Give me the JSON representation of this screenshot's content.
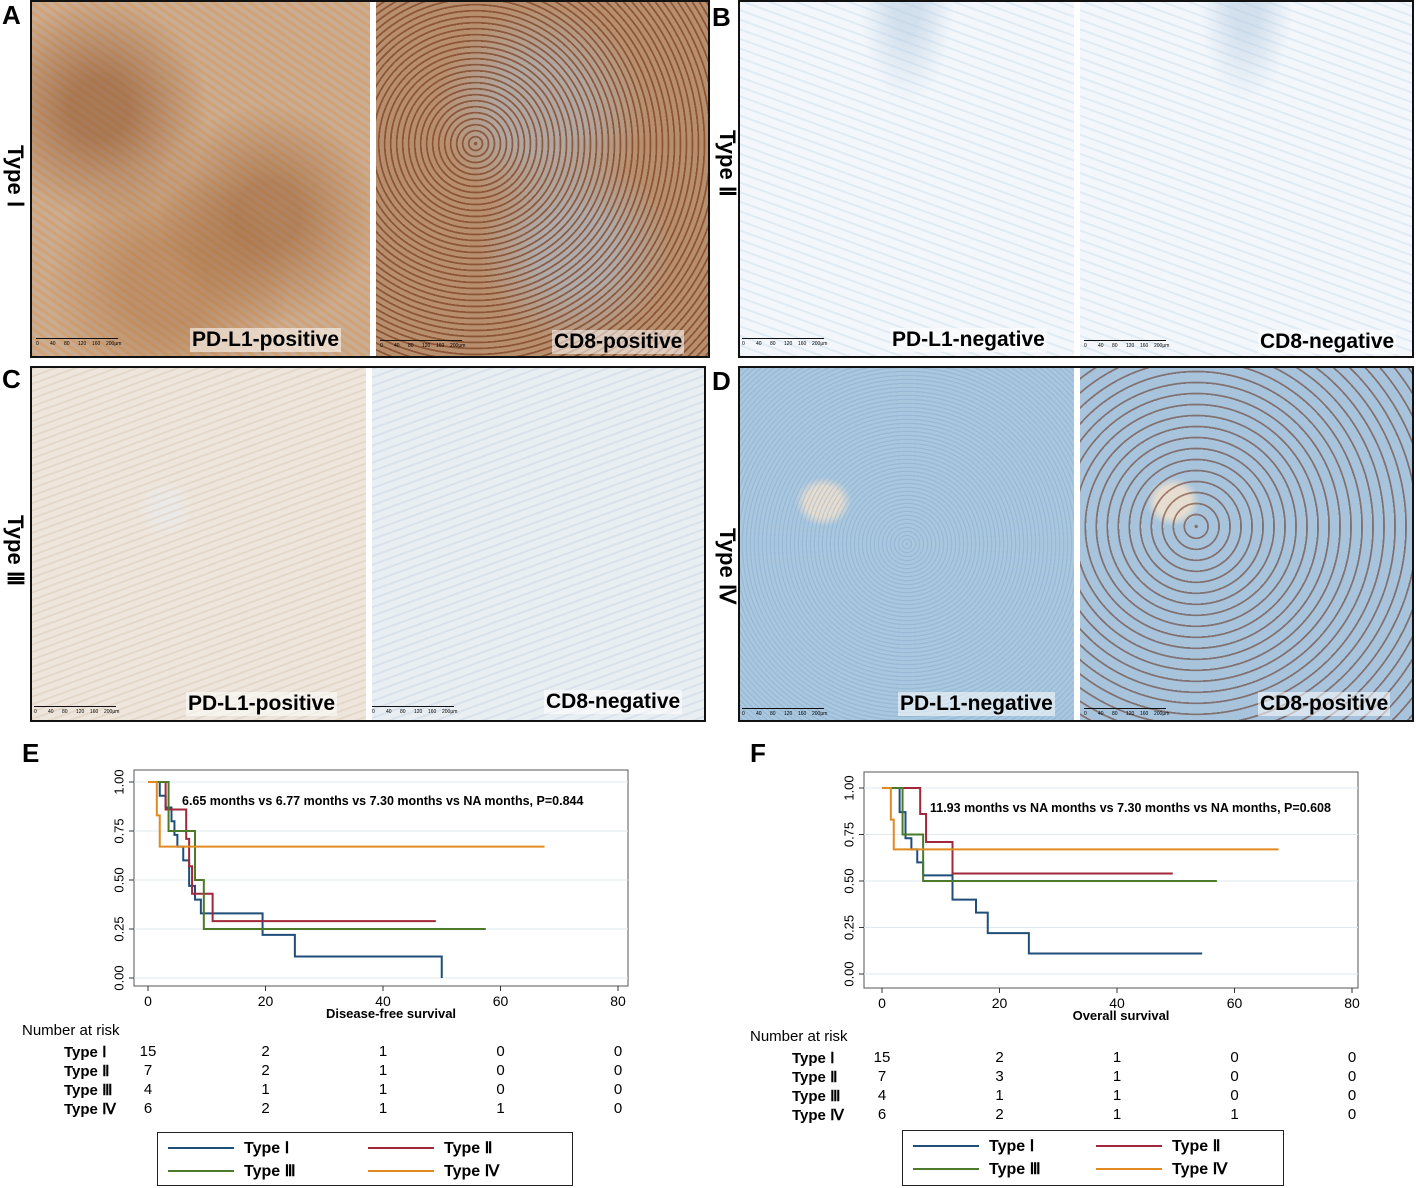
{
  "panels": {
    "A": {
      "letter": "A",
      "type_label": "Type Ⅰ",
      "left_label": "PD-L1-positive",
      "right_label": "CD8-positive"
    },
    "B": {
      "letter": "B",
      "type_label": "Type Ⅱ",
      "left_label": "PD-L1-negative",
      "right_label": "CD8-negative"
    },
    "C": {
      "letter": "C",
      "type_label": "Type Ⅲ",
      "left_label": "PD-L1-positive",
      "right_label": "CD8-negative"
    },
    "D": {
      "letter": "D",
      "type_label": "Type Ⅳ",
      "left_label": "PD-L1-negative",
      "right_label": "CD8-positive"
    },
    "E": {
      "letter": "E"
    },
    "F": {
      "letter": "F"
    }
  },
  "scalebar_ticks": [
    "0",
    "40",
    "80",
    "120",
    "160",
    "200μm"
  ],
  "colors": {
    "type1": "#1f4e79",
    "type2": "#a0283a",
    "type3": "#4a7a2a",
    "type4": "#e08a20"
  },
  "chart_data": [
    {
      "type": "line",
      "subtype": "kaplan-meier",
      "xlabel": "Disease-free survival",
      "ylabel": "",
      "xlim": [
        0,
        80
      ],
      "ylim": [
        0,
        1
      ],
      "xticks": [
        "0",
        "20",
        "40",
        "60",
        "80"
      ],
      "yticks": [
        "0.00",
        "0.25",
        "0.50",
        "0.75",
        "1.00"
      ],
      "annotation": "6.65 months vs 6.77 months vs 7.30 months vs NA months, P=0.844",
      "series": [
        {
          "name": "Type Ⅰ",
          "color": "#1f4e79",
          "steps": [
            [
              0,
              1.0
            ],
            [
              2,
              0.93
            ],
            [
              3,
              0.87
            ],
            [
              4,
              0.8
            ],
            [
              4.5,
              0.73
            ],
            [
              5,
              0.67
            ],
            [
              6,
              0.6
            ],
            [
              7,
              0.47
            ],
            [
              8,
              0.4
            ],
            [
              9,
              0.33
            ],
            [
              19.5,
              0.22
            ],
            [
              25,
              0.11
            ],
            [
              50,
              0.0
            ]
          ]
        },
        {
          "name": "Type Ⅱ",
          "color": "#a0283a",
          "steps": [
            [
              0,
              1.0
            ],
            [
              3,
              0.86
            ],
            [
              6.5,
              0.71
            ],
            [
              7,
              0.57
            ],
            [
              7.5,
              0.43
            ],
            [
              11,
              0.29
            ],
            [
              49,
              0.29
            ]
          ]
        },
        {
          "name": "Type Ⅲ",
          "color": "#4a7a2a",
          "steps": [
            [
              0,
              1.0
            ],
            [
              3.5,
              0.75
            ],
            [
              8,
              0.5
            ],
            [
              9.5,
              0.25
            ],
            [
              57.5,
              0.25
            ]
          ]
        },
        {
          "name": "Type Ⅳ",
          "color": "#e08a20",
          "steps": [
            [
              0,
              1.0
            ],
            [
              1.5,
              0.83
            ],
            [
              2,
              0.67
            ],
            [
              67.5,
              0.67
            ]
          ]
        }
      ],
      "risk_table": {
        "title": "Number at risk",
        "rows": [
          {
            "label": "Type Ⅰ",
            "values": [
              "15",
              "2",
              "1",
              "0",
              "0"
            ]
          },
          {
            "label": "Type Ⅱ",
            "values": [
              "7",
              "2",
              "1",
              "0",
              "0"
            ]
          },
          {
            "label": "Type Ⅲ",
            "values": [
              "4",
              "1",
              "1",
              "0",
              "0"
            ]
          },
          {
            "label": "Type Ⅳ",
            "values": [
              "6",
              "2",
              "1",
              "1",
              "0"
            ]
          }
        ]
      },
      "legend": [
        "Type Ⅰ",
        "Type Ⅱ",
        "Type Ⅲ",
        "Type Ⅳ"
      ]
    },
    {
      "type": "line",
      "subtype": "kaplan-meier",
      "xlabel": "Overall survival",
      "ylabel": "",
      "xlim": [
        0,
        80
      ],
      "ylim": [
        0,
        1
      ],
      "xticks": [
        "0",
        "20",
        "40",
        "60",
        "80"
      ],
      "yticks": [
        "0.00",
        "0.25",
        "0.50",
        "0.75",
        "1.00"
      ],
      "annotation": "11.93 months vs NA months vs 7.30 months vs NA months, P=0.608",
      "series": [
        {
          "name": "Type Ⅰ",
          "color": "#1f4e79",
          "steps": [
            [
              0,
              1.0
            ],
            [
              3,
              0.87
            ],
            [
              4,
              0.73
            ],
            [
              5,
              0.67
            ],
            [
              6,
              0.6
            ],
            [
              7,
              0.53
            ],
            [
              12,
              0.4
            ],
            [
              16,
              0.33
            ],
            [
              18,
              0.22
            ],
            [
              25,
              0.11
            ],
            [
              54.5,
              0.11
            ]
          ]
        },
        {
          "name": "Type Ⅱ",
          "color": "#a0283a",
          "steps": [
            [
              0,
              1.0
            ],
            [
              6.5,
              0.86
            ],
            [
              7.5,
              0.71
            ],
            [
              12,
              0.54
            ],
            [
              49.5,
              0.54
            ]
          ]
        },
        {
          "name": "Type Ⅲ",
          "color": "#4a7a2a",
          "steps": [
            [
              0,
              1.0
            ],
            [
              3.5,
              0.75
            ],
            [
              7,
              0.5
            ],
            [
              57,
              0.5
            ]
          ]
        },
        {
          "name": "Type Ⅳ",
          "color": "#e08a20",
          "steps": [
            [
              0,
              1.0
            ],
            [
              1.5,
              0.83
            ],
            [
              2,
              0.67
            ],
            [
              67.5,
              0.67
            ]
          ]
        }
      ],
      "risk_table": {
        "title": "Number at risk",
        "rows": [
          {
            "label": "Type Ⅰ",
            "values": [
              "15",
              "2",
              "1",
              "0",
              "0"
            ]
          },
          {
            "label": "Type Ⅱ",
            "values": [
              "7",
              "3",
              "1",
              "0",
              "0"
            ]
          },
          {
            "label": "Type Ⅲ",
            "values": [
              "4",
              "1",
              "1",
              "0",
              "0"
            ]
          },
          {
            "label": "Type Ⅳ",
            "values": [
              "6",
              "2",
              "1",
              "1",
              "0"
            ]
          }
        ]
      },
      "legend": [
        "Type Ⅰ",
        "Type Ⅱ",
        "Type Ⅲ",
        "Type Ⅳ"
      ]
    }
  ]
}
